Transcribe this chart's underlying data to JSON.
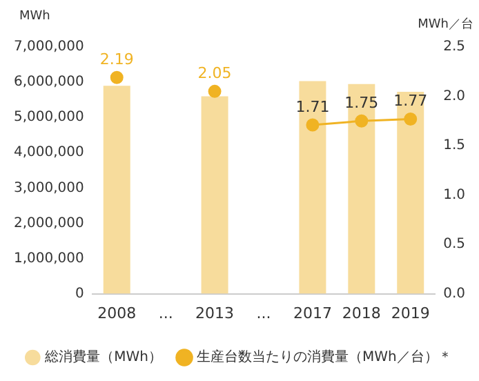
{
  "chart_data": {
    "type": "bar",
    "categories": [
      "2008",
      "...",
      "2013",
      "...",
      "2017",
      "2018",
      "2019"
    ],
    "ylabel": "MWh",
    "y2label": "MWh／台",
    "ylim": [
      0,
      7000000
    ],
    "yticks": [
      {
        "value": 0,
        "label": "0"
      },
      {
        "value": 1000000,
        "label": "1,000,000"
      },
      {
        "value": 2000000,
        "label": "2,000,000"
      },
      {
        "value": 3000000,
        "label": "3,000,000"
      },
      {
        "value": 4000000,
        "label": "4,000,000"
      },
      {
        "value": 5000000,
        "label": "5,000,000"
      },
      {
        "value": 6000000,
        "label": "6,000,000"
      },
      {
        "value": 7000000,
        "label": "7,000,000"
      }
    ],
    "y2lim": [
      0,
      2.5
    ],
    "y2ticks": [
      {
        "value": 0,
        "label": "0.0"
      },
      {
        "value": 0.5,
        "label": "0.5"
      },
      {
        "value": 1,
        "label": "1.0"
      },
      {
        "value": 1.5,
        "label": "1.5"
      },
      {
        "value": 2,
        "label": "2.0"
      },
      {
        "value": 2.5,
        "label": "2.5"
      }
    ],
    "series": [
      {
        "name": "総消費量（MWh）",
        "color": "#f7dc9c",
        "values": [
          5900000,
          null,
          5600000,
          null,
          6030000,
          5950000,
          5730000
        ]
      },
      {
        "name": "生産台数当たりの消費量（MWh／台）＊",
        "type": "line",
        "axis": "y2",
        "color": "#f0b323",
        "values": [
          2.19,
          null,
          2.05,
          null,
          1.71,
          1.75,
          1.77
        ],
        "value_labels": [
          "2.19",
          null,
          "2.05",
          null,
          "1.71",
          "1.75",
          "1.77"
        ]
      }
    ],
    "marker": "circle",
    "grid": false,
    "legend": "bottom"
  }
}
